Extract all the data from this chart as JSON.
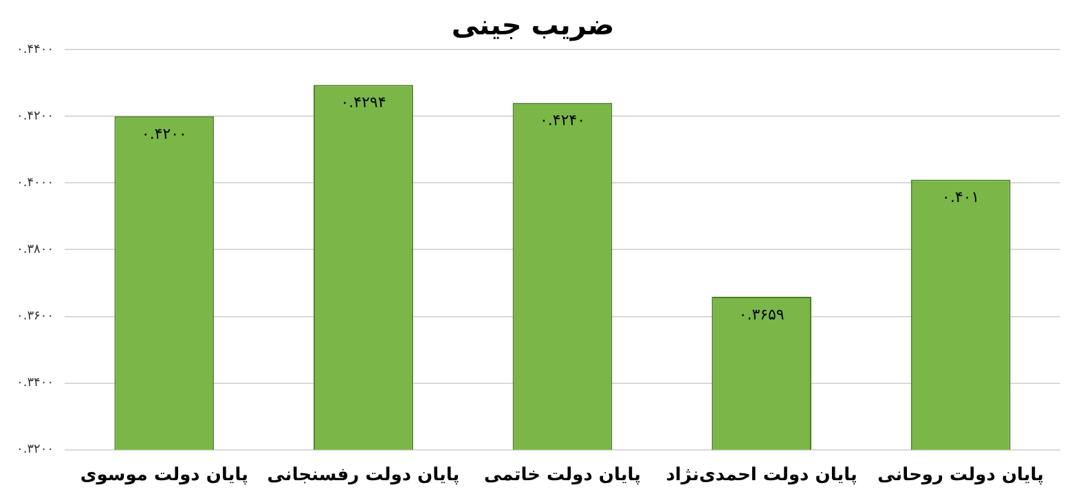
{
  "chart_data": {
    "type": "bar",
    "title": "ضریب جینی",
    "categories": [
      "پایان دولت موسوی",
      "پایان دولت رفسنجانی",
      "پایان دولت خاتمی",
      "پایان دولت احمدی‌نژاد",
      "پایان دولت روحانی"
    ],
    "values": [
      0.42,
      0.4294,
      0.424,
      0.3659,
      0.401
    ],
    "value_labels": [
      "۰.۴۲۰۰",
      "۰.۴۲۹۴",
      "۰.۴۲۴۰",
      "۰.۳۶۵۹",
      "۰.۴۰۱"
    ],
    "color": "#7ab648",
    "ylim": [
      0.32,
      0.44
    ],
    "yticks": [
      {
        "value": 0.32,
        "label": "۰.۳۲۰۰"
      },
      {
        "value": 0.34,
        "label": "۰.۳۴۰۰"
      },
      {
        "value": 0.36,
        "label": "۰.۳۶۰۰"
      },
      {
        "value": 0.38,
        "label": "۰.۳۸۰۰"
      },
      {
        "value": 0.4,
        "label": "۰.۴۰۰۰"
      },
      {
        "value": 0.42,
        "label": "۰.۴۲۰۰"
      },
      {
        "value": 0.44,
        "label": "۰.۴۴۰۰"
      }
    ],
    "grid": "y",
    "legend": false
  }
}
